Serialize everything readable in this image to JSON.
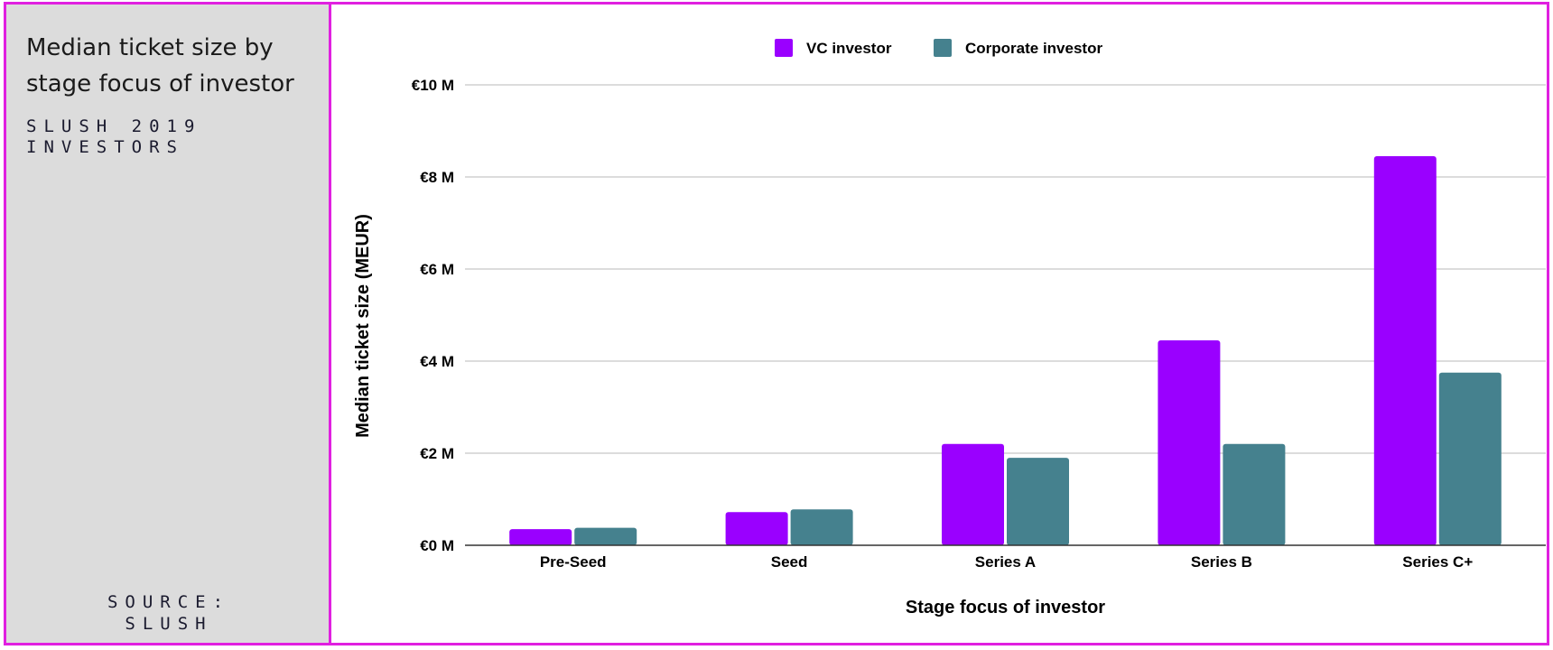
{
  "sidebar": {
    "title": "Median ticket size by stage focus of investor",
    "subtitle_line1": "SLUSH 2019",
    "subtitle_line2": "INVESTORS",
    "source_line1": "SOURCE:",
    "source_line2": "SLUSH"
  },
  "colors": {
    "border": "#e020e0",
    "sidebar_bg": "#dcdcdc",
    "vc": "#9a00ff",
    "corporate": "#45818e"
  },
  "chart_data": {
    "type": "bar",
    "title": "Median ticket size by stage focus of investor",
    "xlabel": "Stage focus of investor",
    "ylabel": "Median ticket size (MEUR)",
    "categories": [
      "Pre-Seed",
      "Seed",
      "Series A",
      "Series B",
      "Series C+"
    ],
    "series": [
      {
        "name": "VC investor",
        "color": "#9a00ff",
        "values": [
          0.35,
          0.72,
          2.2,
          4.45,
          8.45
        ]
      },
      {
        "name": "Corporate investor",
        "color": "#45818e",
        "values": [
          0.38,
          0.78,
          1.9,
          2.2,
          3.75
        ]
      }
    ],
    "ylim": [
      0,
      10
    ],
    "yticks": [
      {
        "value": 0,
        "label": "€0 M"
      },
      {
        "value": 2,
        "label": "€2 M"
      },
      {
        "value": 4,
        "label": "€4 M"
      },
      {
        "value": 6,
        "label": "€6 M"
      },
      {
        "value": 8,
        "label": "€8 M"
      },
      {
        "value": 10,
        "label": "€10 M"
      }
    ],
    "grid": true,
    "legend": "top"
  }
}
